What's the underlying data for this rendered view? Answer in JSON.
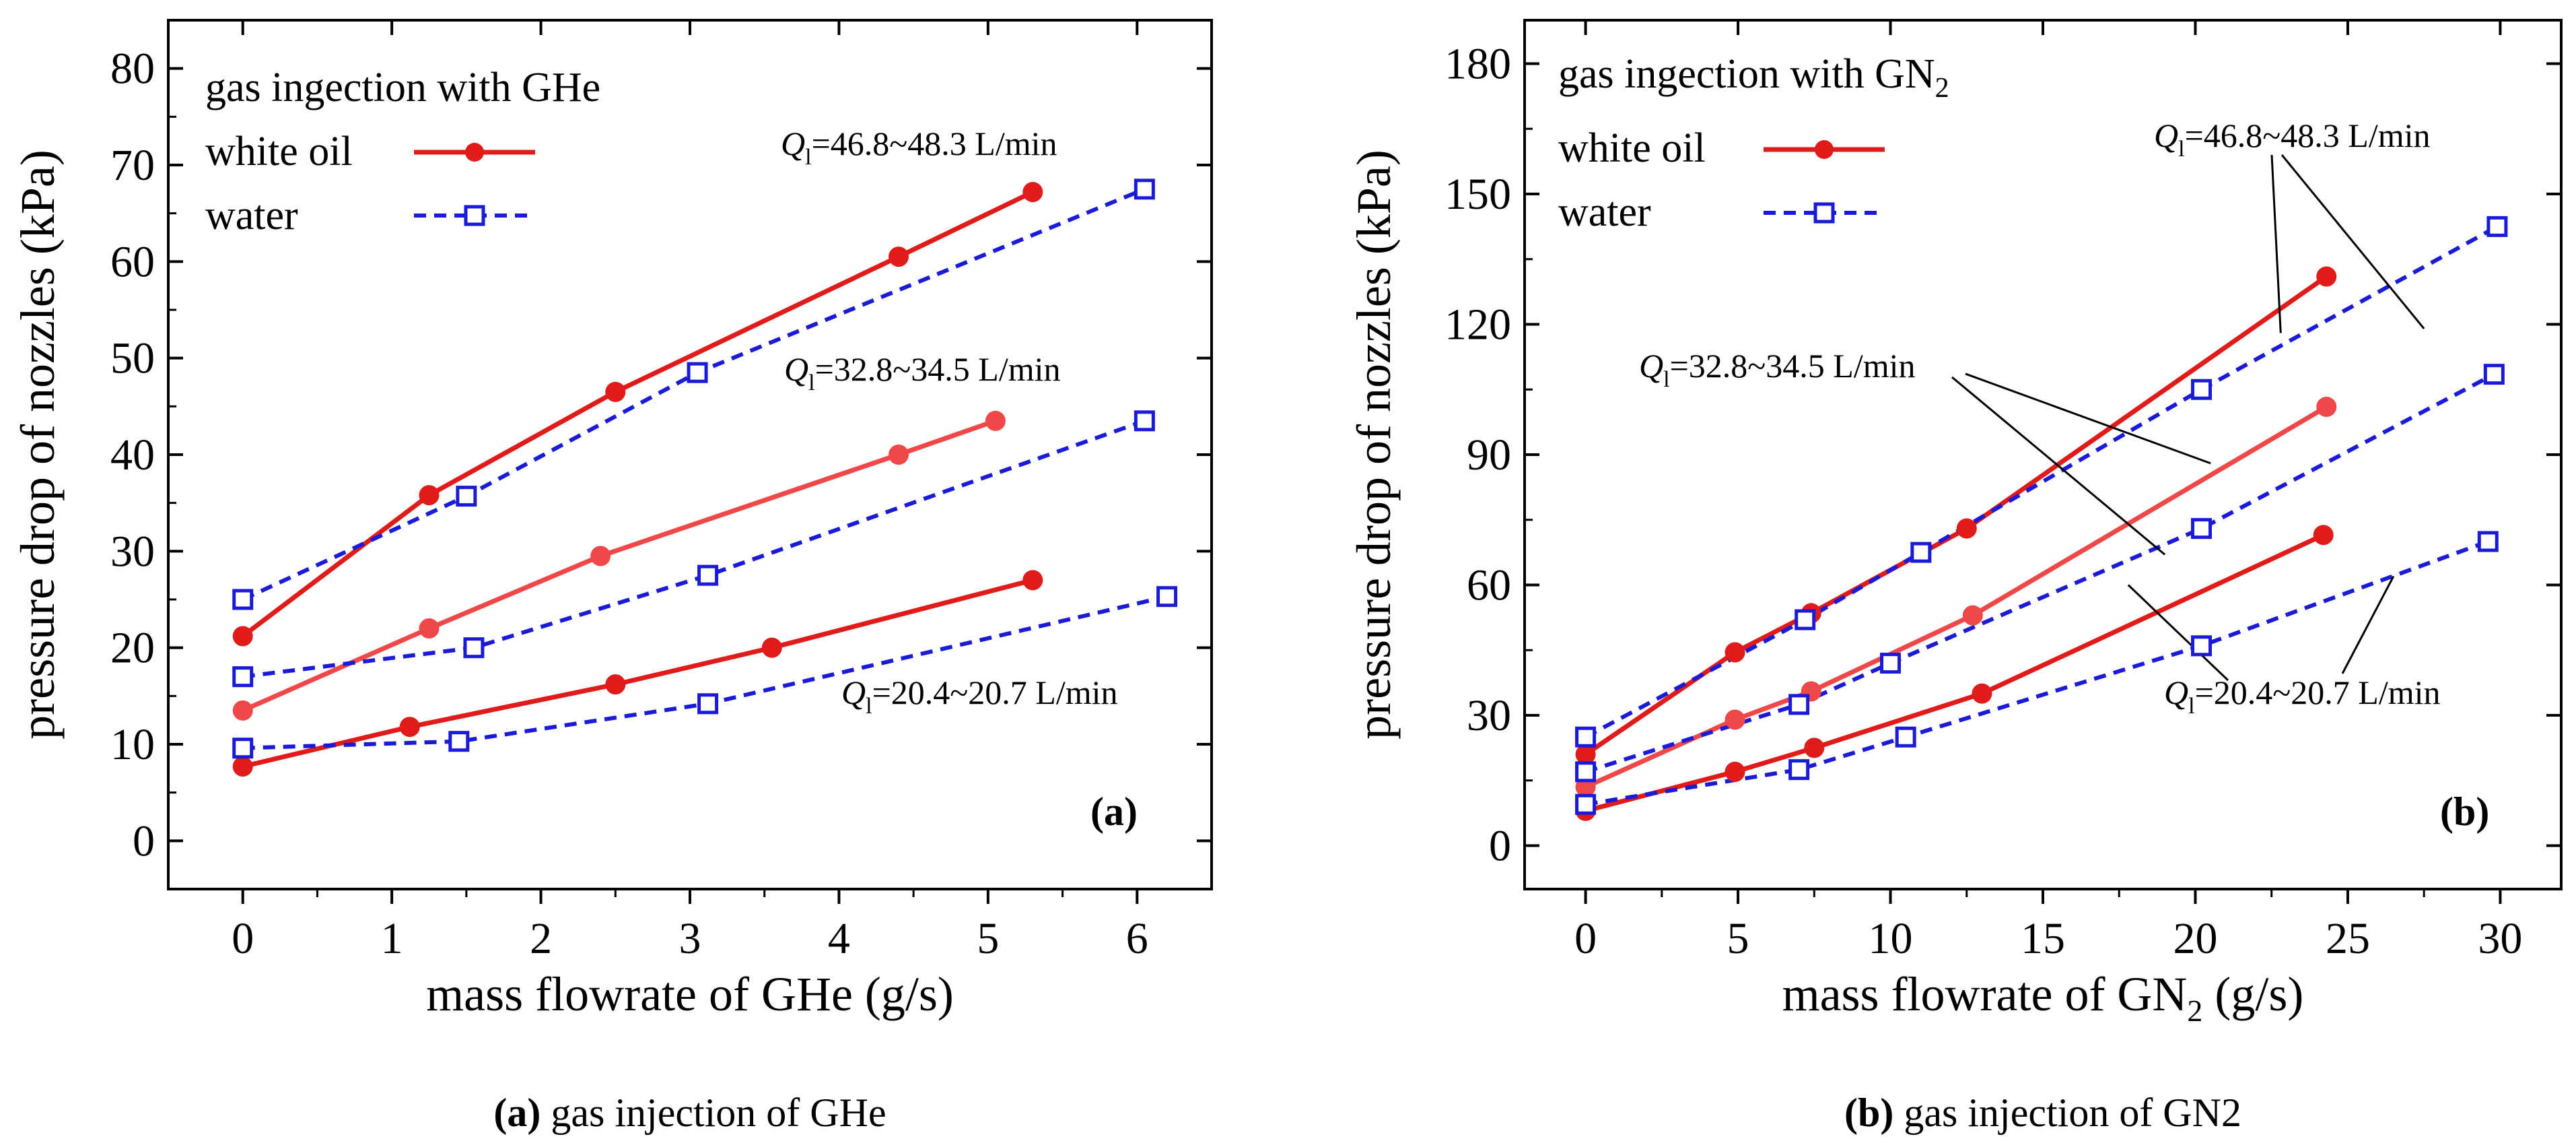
{
  "chart_data": [
    {
      "type": "line",
      "panel_tag": "(a)",
      "caption": {
        "bold": "(a)",
        "text": " gas injection of GHe"
      },
      "legend_title": "gas ingection with GHe",
      "legend": [
        {
          "label": "white oil",
          "color": "#e11a1a",
          "style": "solid",
          "marker": "filled-circle"
        },
        {
          "label": "water",
          "color": "#1a1ad9",
          "style": "dashed",
          "marker": "open-square"
        }
      ],
      "xlabel": "mass flowrate of GHe (g/s)",
      "ylabel": "pressure drop of nozzles (kPa)",
      "xlim": [
        -0.5,
        6.5
      ],
      "ylim": [
        -5,
        85
      ],
      "xticks": [
        0,
        1,
        2,
        3,
        4,
        5,
        6
      ],
      "yticks": [
        0,
        10,
        20,
        30,
        40,
        50,
        60,
        70,
        80
      ],
      "annotations": [
        {
          "q": "Q",
          "sub": "l",
          "text": "=46.8~48.3 L/min"
        },
        {
          "q": "Q",
          "sub": "l",
          "text": "=32.8~34.5 L/min"
        },
        {
          "q": "Q",
          "sub": "l",
          "text": "=20.4~20.7 L/min"
        }
      ],
      "series": [
        {
          "group": "white oil",
          "flow": "46.8~48.3 L/min",
          "color": "#e11a1a",
          "style": "solid",
          "marker": "filled-circle",
          "x": [
            0,
            1.25,
            2.5,
            4.4,
            5.3
          ],
          "y": [
            21.2,
            35.8,
            46.5,
            60.5,
            67.2
          ]
        },
        {
          "group": "white oil",
          "flow": "32.8~34.5 L/min",
          "color": "#f04848",
          "style": "solid",
          "marker": "filled-circle",
          "x": [
            0,
            1.25,
            2.4,
            4.4,
            5.05
          ],
          "y": [
            13.5,
            22.0,
            29.5,
            40.0,
            43.5
          ]
        },
        {
          "group": "white oil",
          "flow": "20.4~20.7 L/min",
          "color": "#e11a1a",
          "style": "solid",
          "marker": "filled-circle",
          "x": [
            0,
            1.12,
            2.5,
            3.55,
            5.3
          ],
          "y": [
            7.7,
            11.8,
            16.2,
            20.0,
            27.0
          ]
        },
        {
          "group": "water",
          "flow": "46.8~48.3 L/min",
          "color": "#1a1ad9",
          "style": "dashed",
          "marker": "open-square",
          "x": [
            0,
            1.5,
            3.05,
            6.05
          ],
          "y": [
            25.0,
            35.7,
            48.5,
            67.5
          ]
        },
        {
          "group": "water",
          "flow": "32.8~34.5 L/min",
          "color": "#1a1ad9",
          "style": "dashed",
          "marker": "open-square",
          "x": [
            0,
            1.55,
            3.12,
            6.05
          ],
          "y": [
            17.0,
            20.0,
            27.5,
            43.5
          ]
        },
        {
          "group": "water",
          "flow": "20.4~20.7 L/min",
          "color": "#1a1ad9",
          "style": "dashed",
          "marker": "open-square",
          "x": [
            0,
            1.45,
            3.12,
            6.2
          ],
          "y": [
            9.6,
            10.3,
            14.2,
            25.3
          ]
        }
      ]
    },
    {
      "type": "line",
      "panel_tag": "(b)",
      "caption": {
        "bold": "(b)",
        "text": " gas injection of GN2"
      },
      "legend_title": {
        "text": "gas ingection with GN",
        "sub": "2"
      },
      "legend": [
        {
          "label": "white oil",
          "color": "#e11a1a",
          "style": "solid",
          "marker": "filled-circle"
        },
        {
          "label": "water",
          "color": "#1a1ad9",
          "style": "dashed",
          "marker": "open-square"
        }
      ],
      "xlabel": {
        "text": "mass flowrate of GN",
        "sub": "2",
        "tail": " (g/s)"
      },
      "ylabel": "pressure drop of nozzles (kPa)",
      "xlim": [
        -2,
        32
      ],
      "ylim": [
        -10,
        190
      ],
      "xticks": [
        0,
        5,
        10,
        15,
        20,
        25,
        30
      ],
      "yticks": [
        0,
        30,
        60,
        90,
        120,
        150,
        180
      ],
      "annotations": [
        {
          "q": "Q",
          "sub": "l",
          "text": "=46.8~48.3 L/min"
        },
        {
          "q": "Q",
          "sub": "l",
          "text": "=32.8~34.5 L/min"
        },
        {
          "q": "Q",
          "sub": "l",
          "text": "=20.4~20.7 L/min"
        }
      ],
      "series": [
        {
          "group": "white oil",
          "flow": "46.8~48.3 L/min",
          "color": "#e11a1a",
          "style": "solid",
          "marker": "filled-circle",
          "x": [
            0,
            4.9,
            7.4,
            12.5,
            24.3
          ],
          "y": [
            21.0,
            44.5,
            53.5,
            73.0,
            131.0
          ]
        },
        {
          "group": "white oil",
          "flow": "32.8~34.5 L/min",
          "color": "#f04848",
          "style": "solid",
          "marker": "filled-circle",
          "x": [
            0,
            4.9,
            7.4,
            12.7,
            24.3
          ],
          "y": [
            13.5,
            29.0,
            35.5,
            53.0,
            101.0
          ]
        },
        {
          "group": "white oil",
          "flow": "20.4~20.7 L/min",
          "color": "#e11a1a",
          "style": "solid",
          "marker": "filled-circle",
          "x": [
            0,
            4.9,
            7.5,
            13.0,
            24.2
          ],
          "y": [
            8.0,
            17.0,
            22.5,
            35.0,
            71.5
          ]
        },
        {
          "group": "water",
          "flow": "46.8~48.3 L/min",
          "color": "#1a1ad9",
          "style": "dashed",
          "marker": "open-square",
          "x": [
            0,
            7.2,
            11.0,
            20.2,
            29.9
          ],
          "y": [
            25.0,
            52.0,
            67.5,
            105.0,
            142.5
          ]
        },
        {
          "group": "water",
          "flow": "32.8~34.5 L/min",
          "color": "#1a1ad9",
          "style": "dashed",
          "marker": "open-square",
          "x": [
            0,
            7.0,
            10.0,
            20.2,
            29.8
          ],
          "y": [
            17.0,
            32.5,
            42.0,
            73.0,
            108.5
          ]
        },
        {
          "group": "water",
          "flow": "20.4~20.7 L/min",
          "color": "#1a1ad9",
          "style": "dashed",
          "marker": "open-square",
          "x": [
            0,
            7.0,
            10.5,
            20.2,
            29.6
          ],
          "y": [
            9.5,
            17.5,
            25.0,
            46.0,
            70.0
          ]
        }
      ]
    }
  ]
}
